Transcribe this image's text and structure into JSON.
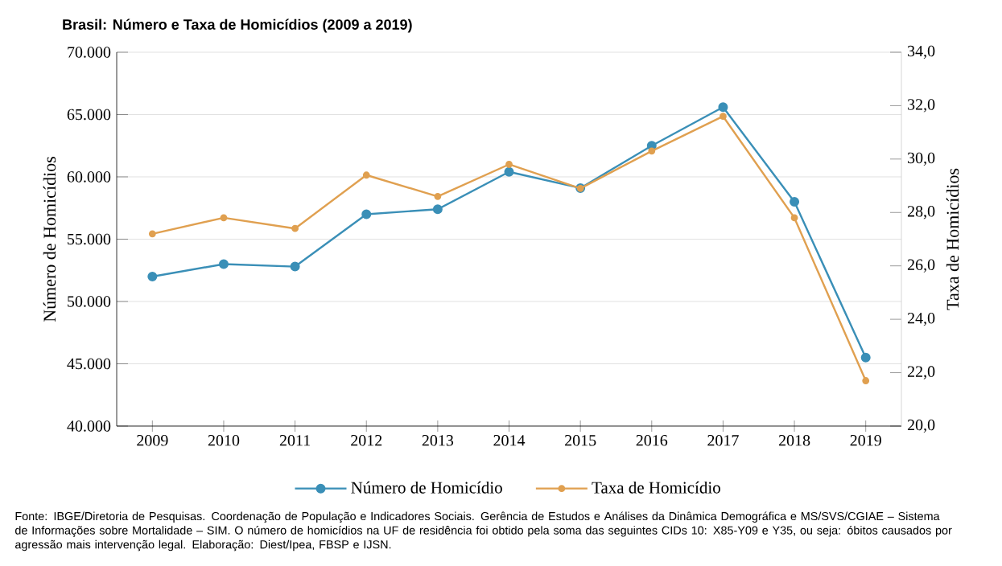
{
  "chart_data": {
    "type": "line",
    "title": "Brasil: Número e Taxa de Homicídios (2009 a 2019)",
    "ylabel": "Número de Homicídios",
    "y2label": "Taxa de Homicídios",
    "categories": [
      "2009",
      "2010",
      "2011",
      "2012",
      "2013",
      "2014",
      "2015",
      "2016",
      "2017",
      "2018",
      "2019"
    ],
    "series": [
      {
        "name": "Número de Homicídio",
        "color": "#3a8fb7",
        "values": [
          52000,
          53000,
          52800,
          57000,
          57400,
          60400,
          59100,
          62500,
          65600,
          58000,
          45500
        ]
      },
      {
        "name": "Taxa de Homicídio",
        "color": "#e0a050",
        "axis": "y2",
        "values": [
          27.2,
          27.8,
          27.4,
          29.4,
          28.6,
          29.8,
          28.9,
          30.3,
          31.6,
          27.8,
          21.7
        ]
      }
    ],
    "ylim": [
      40000,
      70000
    ],
    "yticks": [
      {
        "value": 40000,
        "label": "40.000"
      },
      {
        "value": 45000,
        "label": "45.000"
      },
      {
        "value": 50000,
        "label": "50.000"
      },
      {
        "value": 55000,
        "label": "55.000"
      },
      {
        "value": 60000,
        "label": "60.000"
      },
      {
        "value": 65000,
        "label": "65.000"
      },
      {
        "value": 70000,
        "label": "70.000"
      }
    ],
    "y2lim": [
      20,
      34
    ],
    "y2ticks": [
      {
        "value": 20,
        "label": "20,0"
      },
      {
        "value": 22,
        "label": "22,0"
      },
      {
        "value": 24,
        "label": "24,0"
      },
      {
        "value": 26,
        "label": "26,0"
      },
      {
        "value": 28,
        "label": "28,0"
      },
      {
        "value": 30,
        "label": "30,0"
      },
      {
        "value": 32,
        "label": "32,0"
      },
      {
        "value": 34,
        "label": "34,0"
      }
    ],
    "grid": "y",
    "legend": "bottom",
    "marker": "circle",
    "line_style": "solid",
    "annotations": [
      "Fonte: IBGE/Diretoria de Pesquisas. Coordenação de População e Indicadores Sociais. Gerência de Estudos e Análises da Dinâmica Demográfica e MS/SVS/CGIAE – Sistema de Informações sobre Mortalidade – SIM. O número de homicídios na UF de residência foi obtido pela soma das seguintes CIDs 10: X85-Y09 e Y35, ou seja: óbitos causados por agressão mais intervenção legal. Elaboração: Diest/Ipea, FBSP e IJSN."
    ]
  }
}
